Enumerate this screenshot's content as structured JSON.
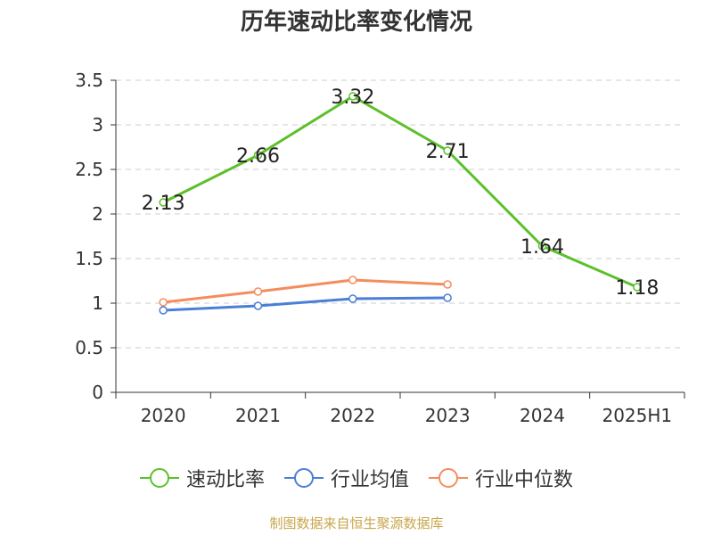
{
  "chart_data": {
    "type": "line",
    "title": "历年速动比率变化情况",
    "categories": [
      "2020",
      "2021",
      "2022",
      "2023",
      "2024",
      "2025H1"
    ],
    "y_ticks": [
      "0",
      "0.5",
      "1",
      "1.5",
      "2",
      "2.5",
      "3",
      "3.5"
    ],
    "ylim": [
      0,
      3.5
    ],
    "grid": true,
    "legend_position": "bottom",
    "series": [
      {
        "name": "速动比率",
        "color": "#5cc02b",
        "values": [
          2.13,
          2.66,
          3.32,
          2.71,
          1.64,
          1.18
        ],
        "data_labels": [
          "2.13",
          "2.66",
          "3.32",
          "2.71",
          "1.64",
          "1.18"
        ]
      },
      {
        "name": "行业均值",
        "color": "#4a7fd6",
        "values": [
          0.92,
          0.97,
          1.05,
          1.06,
          null,
          null
        ]
      },
      {
        "name": "行业中位数",
        "color": "#f48d5e",
        "values": [
          1.01,
          1.13,
          1.26,
          1.21,
          null,
          null
        ]
      }
    ]
  },
  "footer": "制图数据来自恒生聚源数据库"
}
